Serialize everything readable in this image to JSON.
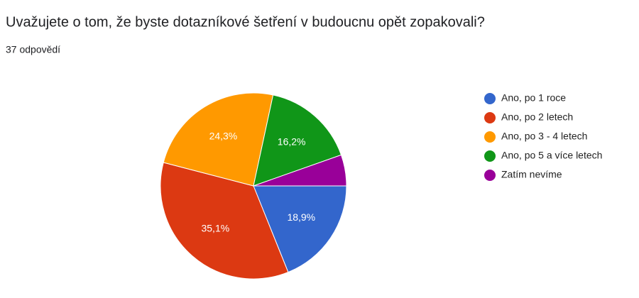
{
  "chart_data": {
    "type": "pie",
    "title": "Uvažujete o tom, že byste dotazníkové šetření v budoucnu opět zopakovali?",
    "subtitle": "37 odpovědí",
    "series": [
      {
        "name": "Ano, po 1 roce",
        "color": "#3366cc"
      },
      {
        "name": "Ano, po 2 letech",
        "color": "#dc3912"
      },
      {
        "name": "Ano, po 3 - 4 letech",
        "color": "#ff9900"
      },
      {
        "name": "Ano, po 5 a více letech",
        "color": "#109618"
      },
      {
        "name": "Zatím nevíme",
        "color": "#990099"
      }
    ],
    "values": [
      18.9,
      35.1,
      24.3,
      16.2,
      5.4
    ],
    "value_labels": [
      "18,9%",
      "35,1%",
      "24,3%",
      "16,2%",
      null
    ],
    "legend": "right"
  }
}
